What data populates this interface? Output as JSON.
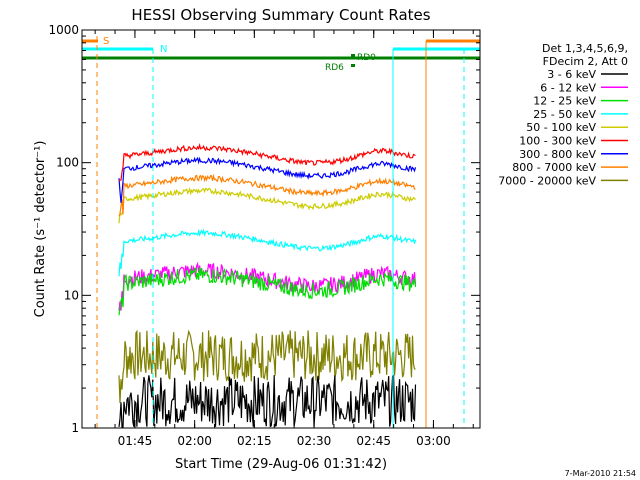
{
  "chart_data": {
    "type": "line",
    "title": "HESSI Observing Summary Count Rates",
    "xlabel": "Start Time (29-Aug-06 01:31:42)",
    "ylabel": "Count Rate (s⁻¹ detector⁻¹)",
    "yscale": "log",
    "ylim": [
      1,
      1000
    ],
    "xlim_minutes_after_01_31_42": [
      0,
      100
    ],
    "x_ticks": [
      "01:45",
      "02:00",
      "02:15",
      "02:30",
      "02:45",
      "03:00"
    ],
    "y_ticks": [
      "1",
      "10",
      "100",
      "1000"
    ],
    "legend_position": "right",
    "legend_header": [
      "Det 1,3,4,5,6,9,",
      "FDecim 2, Att 0"
    ],
    "series": [
      {
        "name": "3 - 6 keV",
        "color": "#000000",
        "level": 1.6
      },
      {
        "name": "6 - 12 keV",
        "color": "#ff00ff",
        "level": 13
      },
      {
        "name": "12 - 25 keV",
        "color": "#00dd00",
        "level": 12
      },
      {
        "name": "25 - 50 keV",
        "color": "#00ffff",
        "level": 25
      },
      {
        "name": "50 - 100 keV",
        "color": "#cccc00",
        "level": 52
      },
      {
        "name": "100 - 300 keV",
        "color": "#ff0000",
        "level": 110
      },
      {
        "name": "300 - 800 keV",
        "color": "#0000ff",
        "level": 88
      },
      {
        "name": "800 - 7000 keV",
        "color": "#ff8000",
        "level": 65
      },
      {
        "name": "7000 - 20000 keV",
        "color": "#808000",
        "level": 3.5
      }
    ],
    "flags": [
      {
        "label": "S",
        "color": "#ff8000"
      },
      {
        "label": "N",
        "color": "#00ffff"
      },
      {
        "label": "RD0",
        "color": "#008000"
      },
      {
        "label": "RD6",
        "color": "#008000"
      }
    ],
    "footer": "7-Mar-2010 21:54"
  }
}
